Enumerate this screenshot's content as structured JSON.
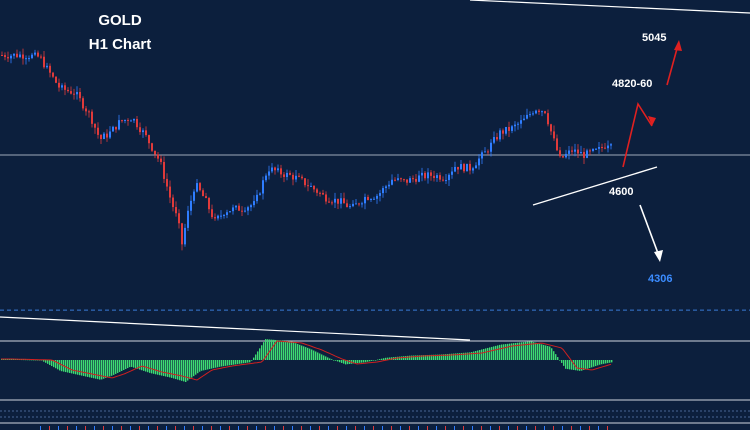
{
  "colors": {
    "background": "#0c1f3d",
    "bull_candle": "#2f7dff",
    "bear_candle": "#e03a3a",
    "histogram": "#3ddc72",
    "signal_line": "#d02020",
    "level_line": "#cfd8e3",
    "support_dashed": "#3a7bd5",
    "up_arrow": "#e02020",
    "down_arrow": "#ffffff",
    "support_label": "#3b8cff"
  },
  "chart_data": {
    "type": "candlestick",
    "title": "GOLD",
    "subtitle": "H1 Chart",
    "xlabel": "",
    "ylabel": "",
    "price_path": [
      [
        0,
        4880
      ],
      [
        25,
        4880
      ],
      [
        40,
        4875
      ],
      [
        48,
        4845
      ],
      [
        60,
        4805
      ],
      [
        75,
        4795
      ],
      [
        90,
        4745
      ],
      [
        100,
        4690
      ],
      [
        110,
        4705
      ],
      [
        120,
        4730
      ],
      [
        132,
        4740
      ],
      [
        145,
        4700
      ],
      [
        160,
        4640
      ],
      [
        170,
        4560
      ],
      [
        178,
        4505
      ],
      [
        182,
        4455
      ],
      [
        188,
        4525
      ],
      [
        195,
        4590
      ],
      [
        205,
        4555
      ],
      [
        215,
        4505
      ],
      [
        225,
        4530
      ],
      [
        240,
        4535
      ],
      [
        255,
        4545
      ],
      [
        268,
        4625
      ],
      [
        280,
        4615
      ],
      [
        295,
        4605
      ],
      [
        310,
        4585
      ],
      [
        325,
        4560
      ],
      [
        340,
        4550
      ],
      [
        352,
        4535
      ],
      [
        365,
        4560
      ],
      [
        378,
        4565
      ],
      [
        392,
        4600
      ],
      [
        405,
        4595
      ],
      [
        418,
        4605
      ],
      [
        432,
        4610
      ],
      [
        445,
        4605
      ],
      [
        455,
        4630
      ],
      [
        470,
        4625
      ],
      [
        485,
        4660
      ],
      [
        500,
        4705
      ],
      [
        512,
        4715
      ],
      [
        525,
        4735
      ],
      [
        535,
        4760
      ],
      [
        545,
        4755
      ],
      [
        552,
        4700
      ],
      [
        560,
        4645
      ],
      [
        572,
        4665
      ],
      [
        585,
        4655
      ],
      [
        598,
        4665
      ],
      [
        612,
        4690
      ]
    ],
    "levels": [
      {
        "label": "5045",
        "value": 5045
      },
      {
        "label": "4820-60",
        "value": 4840
      },
      {
        "label": "4600",
        "value": 4600
      },
      {
        "label": "4306",
        "value": 4306
      }
    ],
    "oscillator": {
      "type": "histogram",
      "path": [
        [
          0,
          0.05
        ],
        [
          40,
          0.0
        ],
        [
          60,
          -0.5
        ],
        [
          80,
          -0.7
        ],
        [
          100,
          -0.9
        ],
        [
          112,
          -0.7
        ],
        [
          130,
          -0.3
        ],
        [
          150,
          -0.6
        ],
        [
          170,
          -0.8
        ],
        [
          185,
          -1.0
        ],
        [
          200,
          -0.5
        ],
        [
          220,
          -0.3
        ],
        [
          250,
          -0.1
        ],
        [
          265,
          0.95
        ],
        [
          290,
          0.85
        ],
        [
          310,
          0.5
        ],
        [
          330,
          0.05
        ],
        [
          345,
          -0.2
        ],
        [
          365,
          -0.1
        ],
        [
          385,
          0.1
        ],
        [
          410,
          0.2
        ],
        [
          440,
          0.25
        ],
        [
          470,
          0.35
        ],
        [
          500,
          0.7
        ],
        [
          530,
          0.85
        ],
        [
          550,
          0.6
        ],
        [
          565,
          -0.4
        ],
        [
          580,
          -0.5
        ],
        [
          600,
          -0.2
        ],
        [
          612,
          -0.1
        ]
      ]
    }
  }
}
